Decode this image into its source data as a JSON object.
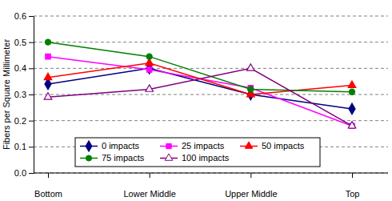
{
  "chart_data": {
    "type": "line",
    "y_label": "Fibers per Square Millimeter",
    "categories": [
      "Bottom",
      "Lower Middle",
      "Upper Middle",
      "Top"
    ],
    "series": [
      {
        "name": "0 impacts",
        "color": "#000080",
        "marker": "diamond",
        "values": [
          0.34,
          0.4,
          0.3,
          0.245
        ]
      },
      {
        "name": "25 impacts",
        "color": "#ff00ff",
        "marker": "square",
        "values": [
          0.445,
          0.395,
          0.325,
          0.18
        ]
      },
      {
        "name": "50 impacts",
        "color": "#ff0000",
        "marker": "triangle",
        "values": [
          0.365,
          0.42,
          0.3,
          0.335
        ]
      },
      {
        "name": "75 impacts",
        "color": "#008000",
        "marker": "circle",
        "values": [
          0.5,
          0.445,
          0.32,
          0.31
        ]
      },
      {
        "name": "100 impacts",
        "color": "#800080",
        "marker": "triangle-open",
        "values": [
          0.29,
          0.32,
          0.4,
          0.18
        ]
      }
    ],
    "ylim": [
      0,
      0.6
    ],
    "yticks": [
      {
        "value": 0,
        "label": "0.0"
      },
      0.1,
      0.2,
      0.3,
      0.4,
      0.5,
      0.6
    ],
    "grid": true,
    "legend": "lower left"
  }
}
